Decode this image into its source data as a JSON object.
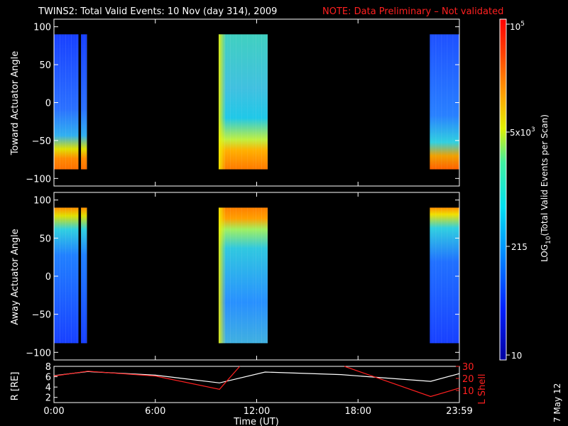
{
  "title": "TWINS2: Total Valid Events: 10 Nov (day 314), 2009",
  "note": "NOTE: Data Preliminary – Not validated",
  "date_stamp": "7 May 12",
  "chart_data": [
    {
      "type": "heatmap",
      "ylabel": "Toward Actuator Angle",
      "ylim": [
        -110,
        110
      ],
      "yticks": [
        100,
        50,
        0,
        -50,
        -100
      ],
      "angle_range": [
        -88,
        90
      ],
      "blocks": [
        {
          "t_start": 0.0,
          "t_end": 1.45,
          "profile": "toward_blue"
        },
        {
          "t_start": 1.6,
          "t_end": 1.95,
          "profile": "toward_blue"
        },
        {
          "t_start": 9.75,
          "t_end": 12.65,
          "profile": "toward_yellow"
        },
        {
          "t_start": 22.25,
          "t_end": 24.0,
          "profile": "toward_end"
        }
      ]
    },
    {
      "type": "heatmap",
      "ylabel": "Away Actuator Angle",
      "ylim": [
        -110,
        110
      ],
      "yticks": [
        100,
        50,
        0,
        -50,
        -100
      ],
      "angle_range": [
        -88,
        90
      ],
      "blocks": [
        {
          "t_start": 0.0,
          "t_end": 1.45,
          "profile": "away_blue"
        },
        {
          "t_start": 1.6,
          "t_end": 1.95,
          "profile": "away_blue"
        },
        {
          "t_start": 9.75,
          "t_end": 12.65,
          "profile": "away_yellow"
        },
        {
          "t_start": 22.25,
          "t_end": 24.0,
          "profile": "away_end"
        }
      ]
    },
    {
      "type": "line",
      "ylabel_left": "R [RE]",
      "ylabel_right": "L Shell",
      "xlabel": "Time (UT)",
      "xlim": [
        0,
        24
      ],
      "xticks": [
        "0:00",
        "6:00",
        "12:00",
        "18:00",
        "23:59"
      ],
      "xtick_values": [
        0,
        6,
        12,
        18,
        24
      ],
      "ylim_left": [
        1,
        8
      ],
      "yticks_left": [
        2,
        4,
        6,
        8
      ],
      "ylim_right": [
        0,
        30
      ],
      "yticks_right": [
        10,
        20,
        30
      ],
      "series": [
        {
          "axis": "left",
          "color": "#ffffff",
          "x": [
            0,
            2,
            6,
            9.8,
            12.5,
            17,
            22.3,
            24
          ],
          "y": [
            6.2,
            7.0,
            6.3,
            4.8,
            6.9,
            6.4,
            5.1,
            6.6
          ]
        },
        {
          "axis": "right",
          "color": "#ff2020",
          "x": [
            0,
            2,
            6,
            9.8,
            11.0
          ],
          "y": [
            22,
            26,
            22,
            11,
            30
          ]
        },
        {
          "axis": "right",
          "color": "#ff2020",
          "x": [
            17.2,
            22.3,
            24
          ],
          "y": [
            30,
            5,
            12
          ]
        }
      ]
    }
  ],
  "colorbar": {
    "label": "LOG10(Total Valid Events per Scan)",
    "label_main": "LOG",
    "label_sub": "10",
    "label_rest": "(Total Valid Events per Scan)",
    "tick_top": "10^5",
    "tick_top_base": "10",
    "tick_top_exp": "5",
    "tick_mid": "5x10^3",
    "tick_mid_base": "5x10",
    "tick_mid_exp": "3",
    "tick_low": "215",
    "tick_bottom": "10"
  }
}
